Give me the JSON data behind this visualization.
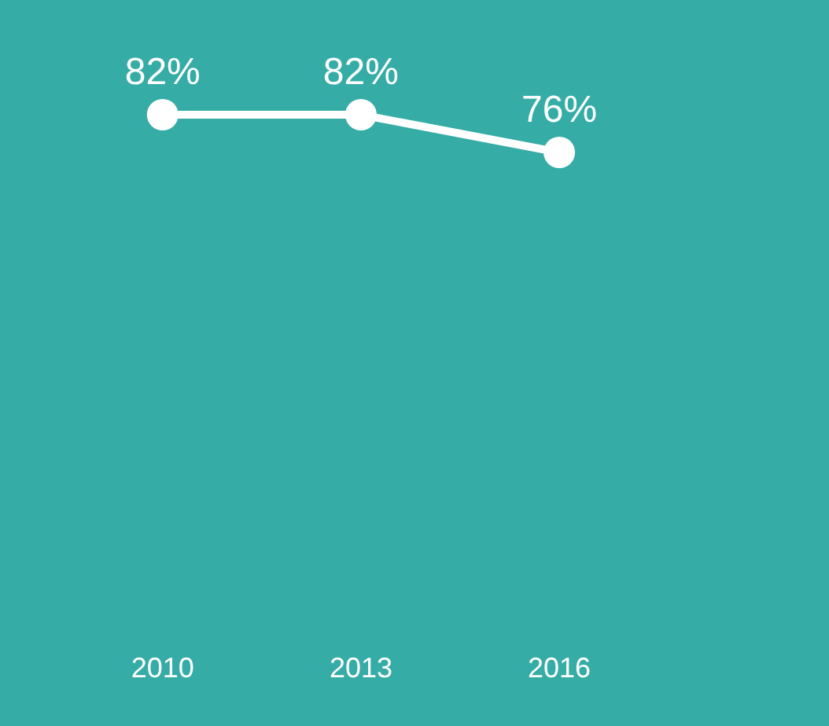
{
  "chart_data": {
    "type": "line",
    "categories": [
      "2010",
      "2013",
      "2016"
    ],
    "series": [
      {
        "color": "#ffffff",
        "values": [
          82,
          82,
          76
        ],
        "value_labels": [
          "82%",
          "82%",
          "76%"
        ]
      }
    ],
    "marker": "circle",
    "line_style": "solid",
    "grid": false
  }
}
